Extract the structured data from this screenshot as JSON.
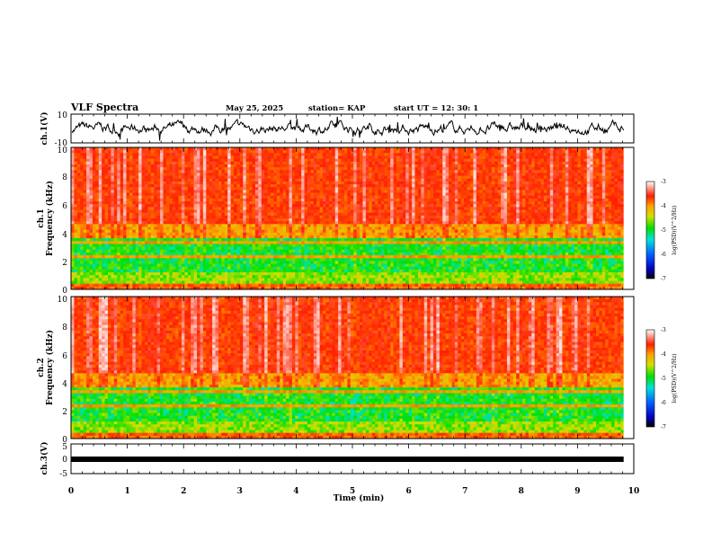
{
  "chart_data": {
    "type": "heatmap",
    "title": "VLF Spectra",
    "date": "May 25, 2025",
    "station": "station= KAP",
    "start_ut": "start  UT =  12: 30: 1",
    "xlabel": "Time  (min)",
    "xlim": [
      0,
      10
    ],
    "xticks": [
      "0",
      "1",
      "2",
      "3",
      "4",
      "5",
      "6",
      "7",
      "8",
      "9",
      "10"
    ],
    "panels": [
      {
        "id": "ch1-waveform",
        "type": "line",
        "ylabel": "ch.1(V)",
        "ylim": [
          -10,
          10
        ],
        "yticks": [
          "10",
          "-10"
        ],
        "mean": 0,
        "amplitude": 3
      },
      {
        "id": "ch1-spectrogram",
        "type": "heatmap",
        "ylabel": "ch.1",
        "ylabel2": "Frequency  (kHz)",
        "ylim": [
          0,
          10
        ],
        "yticks": [
          "0",
          "2",
          "4",
          "6",
          "8",
          "10"
        ],
        "log_psd_range": [
          -7,
          -3
        ],
        "colorbar": {
          "label": "log(PSD)(V^2/Hz)",
          "ticks": [
            "-3",
            "-4",
            "-5",
            "-6",
            "-7"
          ]
        }
      },
      {
        "id": "ch2-spectrogram",
        "type": "heatmap",
        "ylabel": "ch.2",
        "ylabel2": "Frequency  (kHz)",
        "ylim": [
          0,
          10
        ],
        "yticks": [
          "0",
          "2",
          "4",
          "6",
          "8",
          "10"
        ],
        "log_psd_range": [
          -7,
          -3
        ],
        "colorbar": {
          "label": "log(PSD)(V^2/Hz)",
          "ticks": [
            "-3",
            "-4",
            "-5",
            "-6",
            "-7"
          ]
        }
      },
      {
        "id": "ch3-waveform",
        "type": "line",
        "ylabel": "ch.3(V)",
        "ylim": [
          -5,
          5
        ],
        "yticks": [
          "5",
          "0",
          "-5"
        ],
        "mean": -0.7,
        "amplitude": 0.3
      }
    ],
    "data_end_min": 9.82
  }
}
